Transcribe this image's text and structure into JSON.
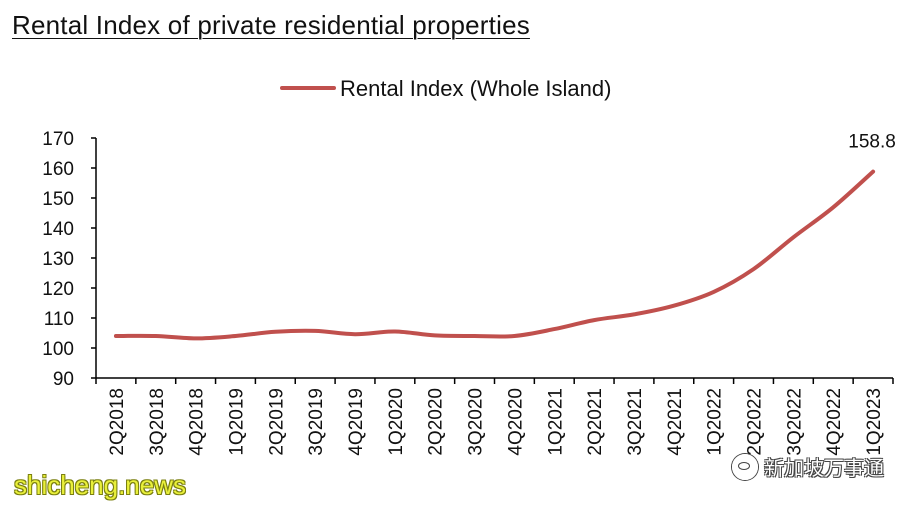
{
  "page": {
    "title": "Rental Index of private residential properties"
  },
  "watermarks": {
    "left": "shicheng.news",
    "right": "新加坡万事通"
  },
  "colors": {
    "series": "#c0504d",
    "axis": "#000000",
    "text": "#111111"
  },
  "chart_data": {
    "type": "line",
    "title": "",
    "xlabel": "",
    "ylabel": "",
    "ylim": [
      90,
      170
    ],
    "yticks": [
      90,
      100,
      110,
      120,
      130,
      140,
      150,
      160,
      170
    ],
    "grid": false,
    "legend_position": "top-center",
    "categories": [
      "2Q2018",
      "3Q2018",
      "4Q2018",
      "1Q2019",
      "2Q2019",
      "3Q2019",
      "4Q2019",
      "1Q2020",
      "2Q2020",
      "3Q2020",
      "4Q2020",
      "1Q2021",
      "2Q2021",
      "3Q2021",
      "4Q2021",
      "1Q2022",
      "2Q2022",
      "3Q2022",
      "4Q2022",
      "1Q2023"
    ],
    "series": [
      {
        "name": "Rental Index (Whole Island)",
        "color": "#c0504d",
        "values": [
          104.0,
          104.0,
          103.2,
          104.0,
          105.4,
          105.7,
          104.6,
          105.5,
          104.2,
          104.0,
          104.0,
          106.3,
          109.3,
          111.2,
          114.1,
          118.7,
          126.3,
          136.9,
          146.9,
          158.8
        ]
      }
    ],
    "annotations": [
      {
        "label": "158.8",
        "series": 0,
        "index": 19
      }
    ]
  }
}
